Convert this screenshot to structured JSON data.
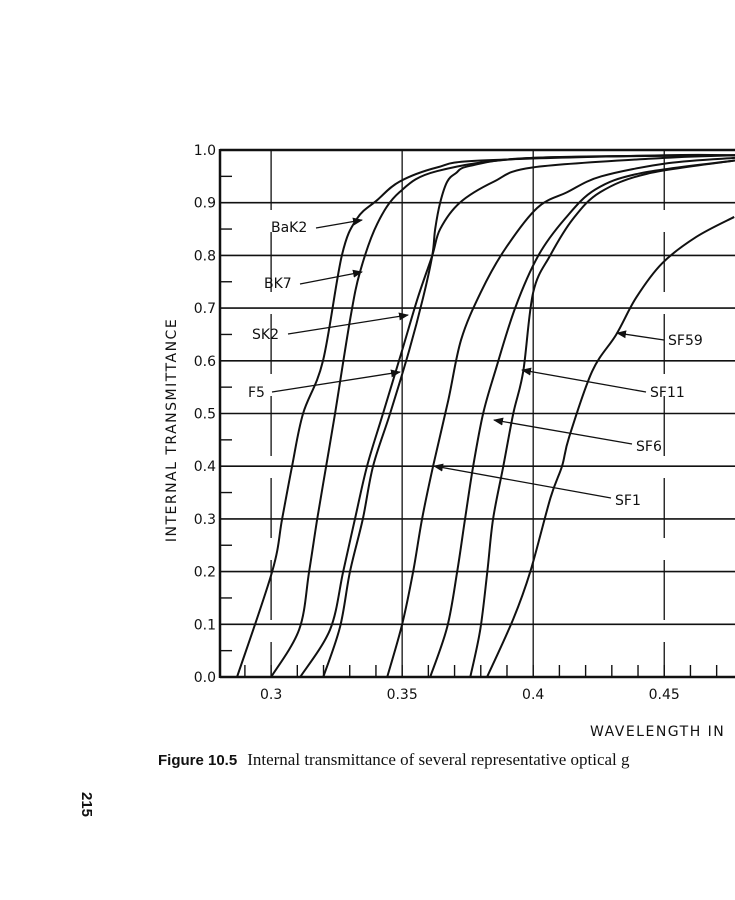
{
  "page_number": "215",
  "caption": {
    "figure_label": "Figure 10.5",
    "text": "Internal transmittance of several representative optical g"
  },
  "chart_data": {
    "type": "line",
    "title": "",
    "xlabel": "WAVELENGTH IN",
    "ylabel": "INTERNAL TRANSMITTANCE",
    "xlim": [
      0.2805,
      0.477
    ],
    "ylim": [
      0.0,
      1.0
    ],
    "grid": true,
    "x_ticks": [
      "0.3",
      "0.35",
      "0.4",
      "0.45"
    ],
    "x_tick_values": [
      0.3,
      0.35,
      0.4,
      0.45
    ],
    "y_ticks": [
      "0.0",
      "0.1",
      "0.2",
      "0.3",
      "0.4",
      "0.5",
      "0.6",
      "0.7",
      "0.8",
      "0.9",
      "1.0"
    ],
    "y_tick_values": [
      0.0,
      0.1,
      0.2,
      0.3,
      0.4,
      0.5,
      0.6,
      0.7,
      0.8,
      0.9,
      1.0
    ],
    "series": [
      {
        "name": "BaK2",
        "x": [
          0.287,
          0.3004,
          0.3042,
          0.308,
          0.3122,
          0.3198,
          0.327,
          0.3328,
          0.3405,
          0.349,
          0.3634,
          0.38,
          0.45,
          0.477
        ],
        "y": [
          0.0,
          0.2,
          0.3,
          0.4,
          0.5,
          0.6,
          0.8,
          0.87,
          0.905,
          0.94,
          0.967,
          0.98,
          0.99,
          0.99
        ]
      },
      {
        "name": "BK7",
        "x": [
          0.3,
          0.3107,
          0.3145,
          0.3176,
          0.321,
          0.3244,
          0.3302,
          0.334,
          0.3405,
          0.349,
          0.3634,
          0.4,
          0.477
        ],
        "y": [
          0.0,
          0.09,
          0.2,
          0.3,
          0.4,
          0.5,
          0.68,
          0.77,
          0.86,
          0.92,
          0.96,
          0.985,
          0.99
        ]
      },
      {
        "name": "SK2",
        "x": [
          0.3111,
          0.3225,
          0.3275,
          0.332,
          0.3366,
          0.3427,
          0.35,
          0.356,
          0.3615,
          0.3645,
          0.372,
          0.385,
          0.4,
          0.45,
          0.477
        ],
        "y": [
          0.0,
          0.09,
          0.2,
          0.3,
          0.4,
          0.5,
          0.62,
          0.72,
          0.8,
          0.85,
          0.9,
          0.94,
          0.967,
          0.985,
          0.99
        ]
      },
      {
        "name": "F5",
        "x": [
          0.3199,
          0.3263,
          0.3301,
          0.335,
          0.3389,
          0.3454,
          0.3527,
          0.358,
          0.3615,
          0.3626,
          0.3645,
          0.3672,
          0.3705,
          0.376,
          0.4,
          0.477
        ],
        "y": [
          0.0,
          0.095,
          0.2,
          0.3,
          0.4,
          0.5,
          0.62,
          0.72,
          0.8,
          0.85,
          0.9,
          0.94,
          0.956,
          0.97,
          0.985,
          0.99
        ]
      },
      {
        "name": "SF1",
        "x": [
          0.3443,
          0.35,
          0.3542,
          0.3576,
          0.3618,
          0.3676,
          0.3725,
          0.38,
          0.389,
          0.4015,
          0.413,
          0.426,
          0.4515,
          0.477
        ],
        "y": [
          0.0,
          0.1,
          0.2,
          0.3,
          0.4,
          0.525,
          0.64,
          0.73,
          0.81,
          0.89,
          0.92,
          0.95,
          0.975,
          0.985
        ]
      },
      {
        "name": "SF6",
        "x": [
          0.3607,
          0.3672,
          0.371,
          0.374,
          0.3771,
          0.3809,
          0.3855,
          0.3931,
          0.402,
          0.4122,
          0.4237,
          0.441,
          0.477
        ],
        "y": [
          0.0,
          0.095,
          0.2,
          0.3,
          0.4,
          0.5,
          0.58,
          0.7,
          0.8,
          0.87,
          0.925,
          0.956,
          0.98
        ]
      },
      {
        "name": "SF11",
        "x": [
          0.376,
          0.3798,
          0.3825,
          0.3847,
          0.3886,
          0.3924,
          0.3962,
          0.4,
          0.4065,
          0.4153,
          0.4256,
          0.4435,
          0.477
        ],
        "y": [
          0.0,
          0.09,
          0.2,
          0.3,
          0.4,
          0.5,
          0.58,
          0.73,
          0.8,
          0.87,
          0.92,
          0.955,
          0.98
        ]
      },
      {
        "name": "SF59",
        "x": [
          0.3824,
          0.3924,
          0.3989,
          0.4066,
          0.411,
          0.4137,
          0.4225,
          0.4317,
          0.4393,
          0.4492,
          0.4622,
          0.4767
        ],
        "y": [
          0.0,
          0.11,
          0.2,
          0.34,
          0.4,
          0.455,
          0.58,
          0.65,
          0.72,
          0.785,
          0.835,
          0.873
        ]
      }
    ]
  }
}
